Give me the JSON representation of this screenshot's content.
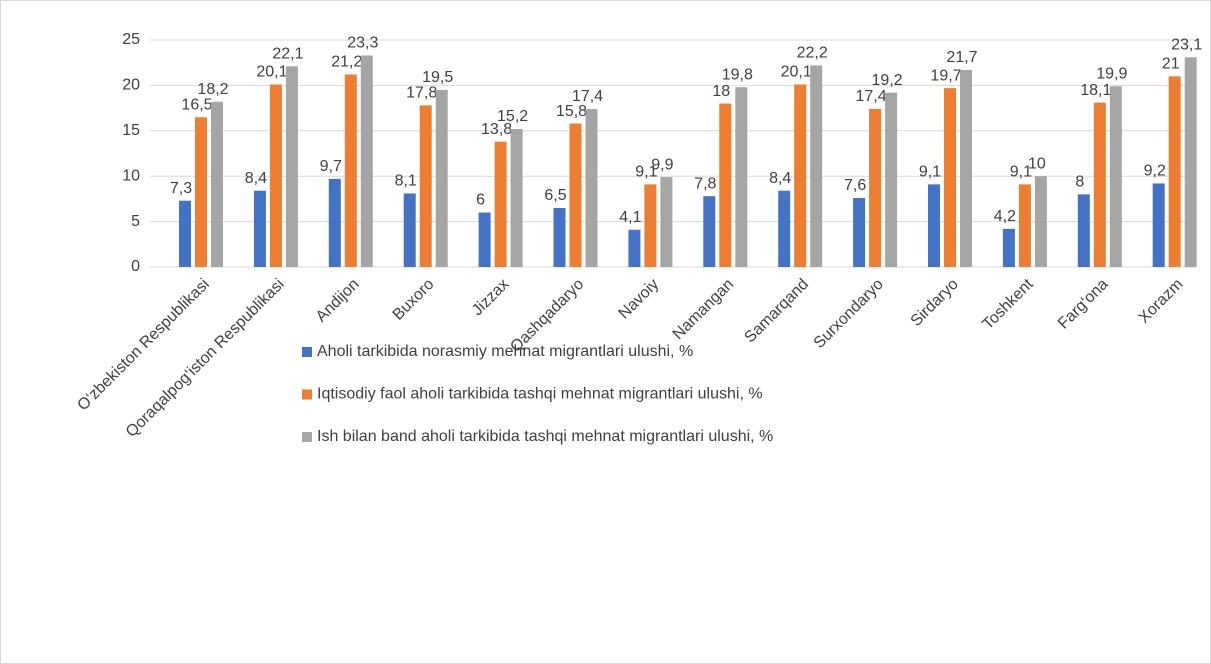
{
  "chart_data": {
    "type": "bar",
    "categories": [
      "O‘zbekiston Respublikasi",
      "Qoraqalpog‘iston Respublikasi",
      "Andijon",
      "Buxoro",
      "Jizzax",
      "Qashqadaryo",
      "Navoiy",
      "Namangan",
      "Samarqand",
      "Surxondaryo",
      "Sirdaryo",
      "Toshkent",
      "Farg‘ona",
      "Xorazm"
    ],
    "series": [
      {
        "name": "Aholi tarkibida norasmiy mehnat migrantlari ulushi, %",
        "color": "#4472c4",
        "values": [
          7.3,
          8.4,
          9.7,
          8.1,
          6,
          6.5,
          4.1,
          7.8,
          8.4,
          7.6,
          9.1,
          4.2,
          8,
          9.2
        ],
        "value_labels": [
          "7,3",
          "8,4",
          "9,7",
          "8,1",
          "6",
          "6,5",
          "4,1",
          "7,8",
          "8,4",
          "7,6",
          "9,1",
          "4,2",
          "8",
          "9,2"
        ]
      },
      {
        "name": "Iqtisodiy faol aholi tarkibida tashqi mehnat migrantlari ulushi, %",
        "color": "#ed7d31",
        "values": [
          16.5,
          20.1,
          21.2,
          17.8,
          13.8,
          15.8,
          9.1,
          18,
          20.1,
          17.4,
          19.7,
          9.1,
          18.1,
          21
        ],
        "value_labels": [
          "16,5",
          "20,1",
          "21,2",
          "17,8",
          "13,8",
          "15,8",
          "9,1",
          "18",
          "20,1",
          "17,4",
          "19,7",
          "9,1",
          "18,1",
          "21"
        ]
      },
      {
        "name": "Ish bilan band aholi tarkibida tashqi mehnat migrantlari ulushi, %",
        "color": "#a5a5a5",
        "values": [
          18.2,
          22.1,
          23.3,
          19.5,
          15.2,
          17.4,
          9.9,
          19.8,
          22.2,
          19.2,
          21.7,
          10,
          19.9,
          23.1
        ],
        "value_labels": [
          "18,2",
          "22,1",
          "23,3",
          "19,5",
          "15,2",
          "17,4",
          "9,9",
          "19,8",
          "22,2",
          "19,2",
          "21,7",
          "10",
          "19,9",
          "23,1"
        ]
      }
    ],
    "ylim": [
      0,
      25
    ],
    "yticks": [
      0,
      5,
      10,
      15,
      20,
      25
    ],
    "grid": true,
    "legend": "bottom"
  }
}
